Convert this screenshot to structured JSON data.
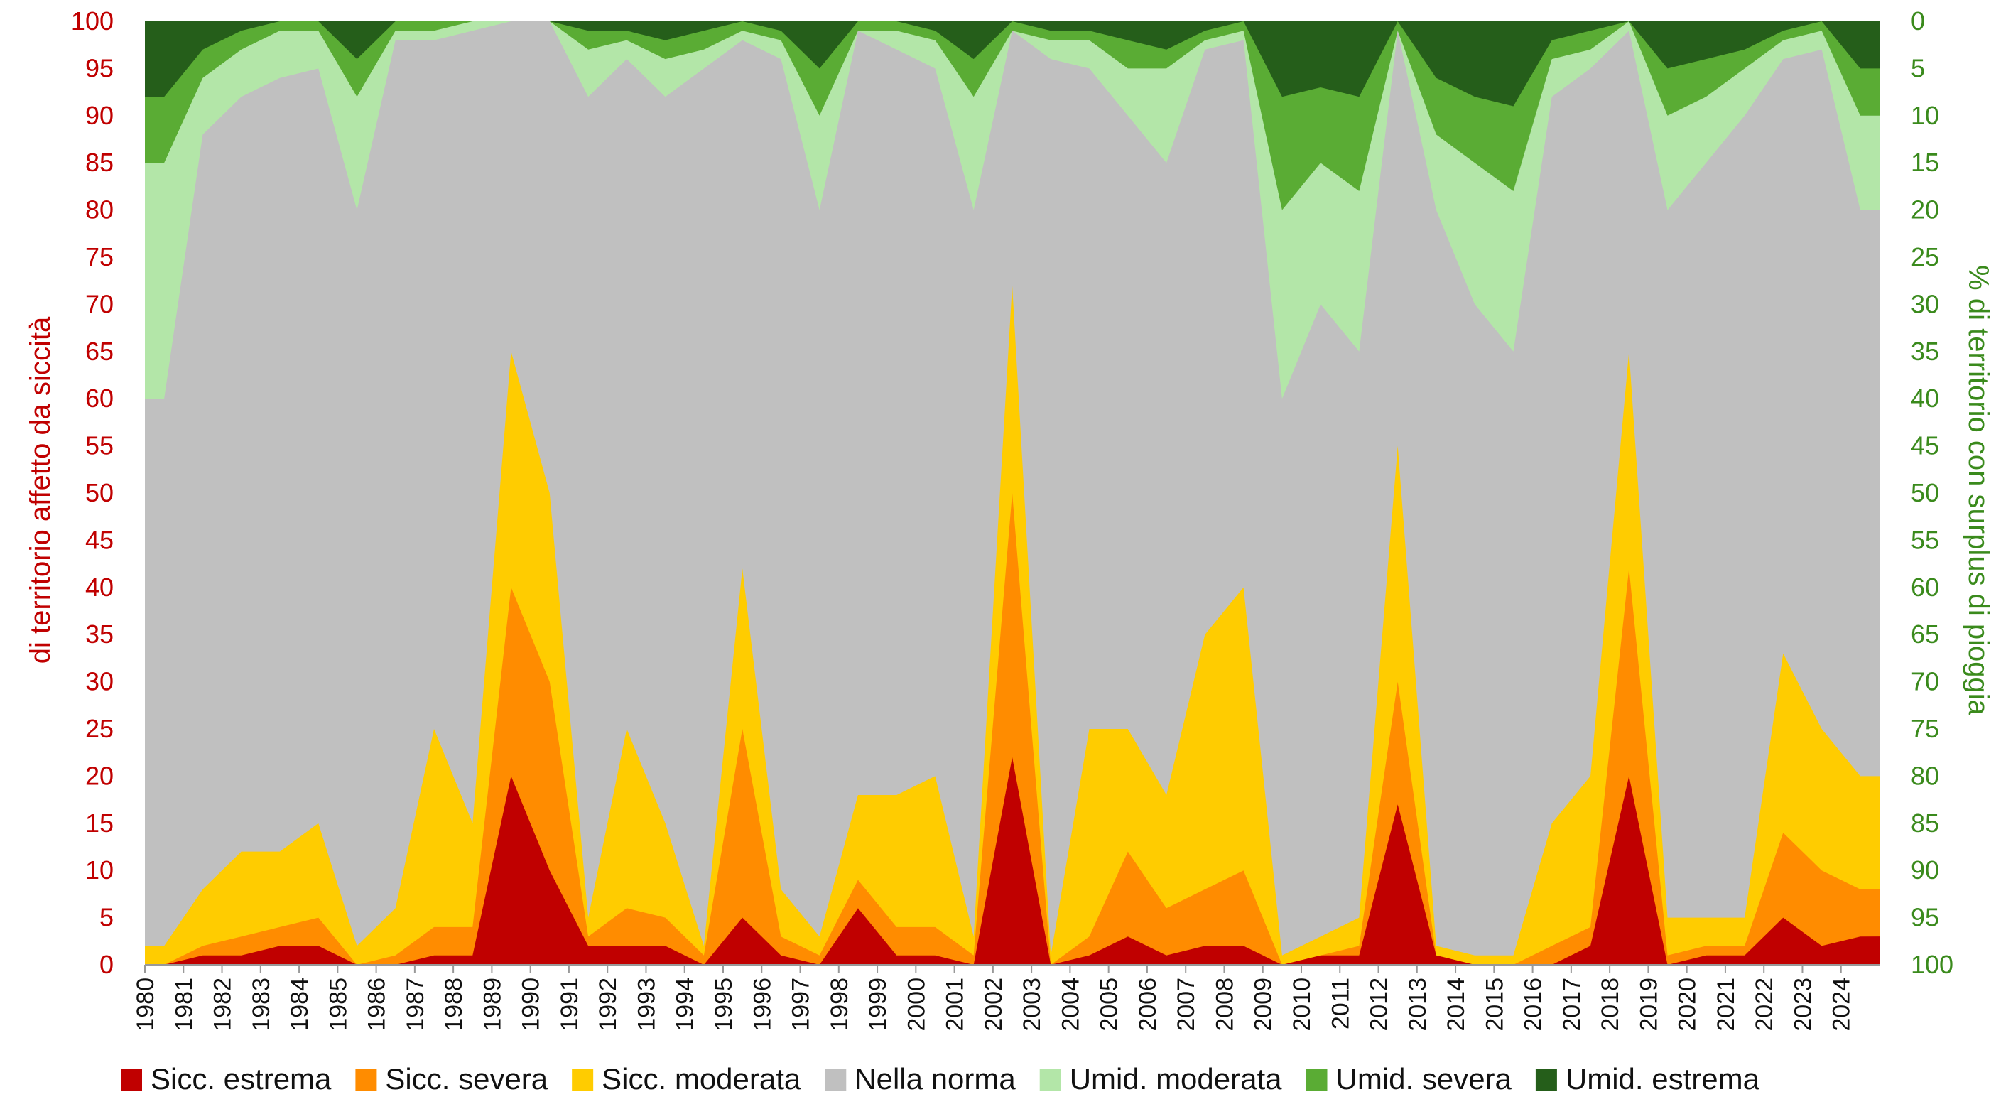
{
  "chart_data": {
    "type": "area",
    "ylabel_left": "di territorio affetto da siccità",
    "ylabel_right": "% di territorio con surplus di pioggia",
    "ylim": [
      0,
      100
    ],
    "left_ticks": [
      "0",
      "5",
      "10",
      "15",
      "20",
      "25",
      "30",
      "35",
      "40",
      "45",
      "50",
      "55",
      "60",
      "65",
      "70",
      "75",
      "80",
      "85",
      "90",
      "95",
      "100"
    ],
    "right_ticks": [
      "100",
      "95",
      "90",
      "85",
      "80",
      "75",
      "70",
      "65",
      "60",
      "55",
      "50",
      "45",
      "40",
      "35",
      "30",
      "25",
      "20",
      "15",
      "10",
      "5",
      "0"
    ],
    "years": [
      "1980",
      "1981",
      "1982",
      "1983",
      "1984",
      "1985",
      "1986",
      "1987",
      "1988",
      "1989",
      "1990",
      "1991",
      "1992",
      "1993",
      "1994",
      "1995",
      "1996",
      "1997",
      "1998",
      "1999",
      "2000",
      "2001",
      "2002",
      "2003",
      "2004",
      "2005",
      "2006",
      "2007",
      "2008",
      "2009",
      "2010",
      "2011",
      "2012",
      "2013",
      "2014",
      "2015",
      "2016",
      "2017",
      "2018",
      "2019",
      "2020",
      "2021",
      "2022",
      "2023",
      "2024"
    ],
    "series": [
      {
        "name": "Sicc. estrema",
        "color": "#c00000",
        "values": [
          0,
          1,
          1,
          2,
          2,
          0,
          0,
          1,
          1,
          20,
          10,
          2,
          2,
          2,
          0,
          5,
          1,
          0,
          6,
          1,
          1,
          0,
          22,
          0,
          1,
          3,
          1,
          2,
          2,
          0,
          1,
          1,
          17,
          1,
          0,
          0,
          0,
          2,
          20,
          0,
          1,
          1,
          5,
          2,
          3
        ]
      },
      {
        "name": "Sicc. severa",
        "color": "#ff8c00",
        "values": [
          0,
          2,
          3,
          4,
          5,
          0,
          1,
          4,
          4,
          40,
          30,
          3,
          6,
          5,
          1,
          25,
          3,
          1,
          9,
          4,
          4,
          1,
          50,
          0,
          3,
          12,
          6,
          8,
          10,
          0,
          1,
          2,
          30,
          1,
          0,
          0,
          2,
          4,
          42,
          1,
          2,
          2,
          14,
          10,
          8
        ]
      },
      {
        "name": "Sicc. moderata",
        "color": "#ffcc00",
        "values": [
          2,
          8,
          12,
          12,
          15,
          2,
          6,
          25,
          15,
          65,
          50,
          5,
          25,
          15,
          2,
          42,
          8,
          3,
          18,
          18,
          20,
          3,
          72,
          1,
          25,
          25,
          18,
          35,
          40,
          1,
          3,
          5,
          55,
          2,
          1,
          1,
          15,
          20,
          65,
          5,
          5,
          5,
          33,
          25,
          20
        ]
      },
      {
        "name": "Nella norma",
        "color": "#c0c0c0",
        "values": [
          60,
          88,
          92,
          94,
          95,
          80,
          98,
          98,
          99,
          100,
          100,
          92,
          96,
          92,
          95,
          98,
          96,
          80,
          99,
          97,
          95,
          80,
          99,
          96,
          95,
          90,
          85,
          97,
          98,
          60,
          70,
          65,
          99,
          80,
          70,
          65,
          92,
          95,
          99,
          80,
          85,
          90,
          96,
          97,
          80
        ]
      },
      {
        "name": "Umid. moderata",
        "color": "#b3e6a8",
        "values": [
          85,
          94,
          97,
          99,
          99,
          92,
          99,
          99,
          100,
          100,
          100,
          97,
          98,
          96,
          97,
          99,
          98,
          90,
          99,
          99,
          98,
          92,
          99,
          98,
          98,
          95,
          95,
          98,
          99,
          80,
          85,
          82,
          99,
          88,
          85,
          82,
          96,
          97,
          100,
          90,
          92,
          95,
          98,
          99,
          90
        ]
      },
      {
        "name": "Umid. severa",
        "color": "#5aac34",
        "values": [
          92,
          97,
          99,
          100,
          100,
          96,
          100,
          100,
          100,
          100,
          100,
          99,
          99,
          98,
          99,
          100,
          99,
          95,
          100,
          100,
          99,
          96,
          100,
          99,
          99,
          98,
          97,
          99,
          100,
          92,
          93,
          92,
          100,
          94,
          92,
          91,
          98,
          99,
          100,
          95,
          96,
          97,
          99,
          100,
          95
        ]
      },
      {
        "name": "Umid. estrema",
        "color": "#255e1a",
        "values": [
          100,
          100,
          100,
          100,
          100,
          100,
          100,
          100,
          100,
          100,
          100,
          100,
          100,
          100,
          100,
          100,
          100,
          100,
          100,
          100,
          100,
          100,
          100,
          100,
          100,
          100,
          100,
          100,
          100,
          100,
          100,
          100,
          100,
          100,
          100,
          100,
          100,
          100,
          100,
          100,
          100,
          100,
          100,
          100,
          100
        ]
      }
    ],
    "legend_position": "bottom",
    "grid": false
  }
}
